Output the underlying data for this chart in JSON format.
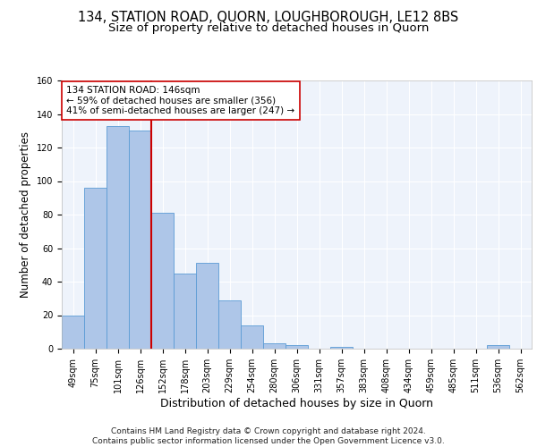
{
  "title1": "134, STATION ROAD, QUORN, LOUGHBOROUGH, LE12 8BS",
  "title2": "Size of property relative to detached houses in Quorn",
  "xlabel": "Distribution of detached houses by size in Quorn",
  "ylabel": "Number of detached properties",
  "footer": "Contains HM Land Registry data © Crown copyright and database right 2024.\nContains public sector information licensed under the Open Government Licence v3.0.",
  "bar_labels": [
    "49sqm",
    "75sqm",
    "101sqm",
    "126sqm",
    "152sqm",
    "178sqm",
    "203sqm",
    "229sqm",
    "254sqm",
    "280sqm",
    "306sqm",
    "331sqm",
    "357sqm",
    "383sqm",
    "408sqm",
    "434sqm",
    "459sqm",
    "485sqm",
    "511sqm",
    "536sqm",
    "562sqm"
  ],
  "bar_heights": [
    20,
    96,
    133,
    130,
    81,
    45,
    51,
    29,
    14,
    3,
    2,
    0,
    1,
    0,
    0,
    0,
    0,
    0,
    0,
    2,
    0
  ],
  "bar_color": "#aec6e8",
  "bar_edge_color": "#5b9bd5",
  "background_color": "#eef3fb",
  "grid_color": "#ffffff",
  "vline_index": 4,
  "vline_color": "#cc0000",
  "annotation_text": "134 STATION ROAD: 146sqm\n← 59% of detached houses are smaller (356)\n41% of semi-detached houses are larger (247) →",
  "annotation_box_edge": "#cc0000",
  "ylim": [
    0,
    160
  ],
  "yticks": [
    0,
    20,
    40,
    60,
    80,
    100,
    120,
    140,
    160
  ],
  "title1_fontsize": 10.5,
  "title2_fontsize": 9.5,
  "xlabel_fontsize": 9,
  "ylabel_fontsize": 8.5,
  "tick_fontsize": 7,
  "annotation_fontsize": 7.5,
  "footer_fontsize": 6.5
}
